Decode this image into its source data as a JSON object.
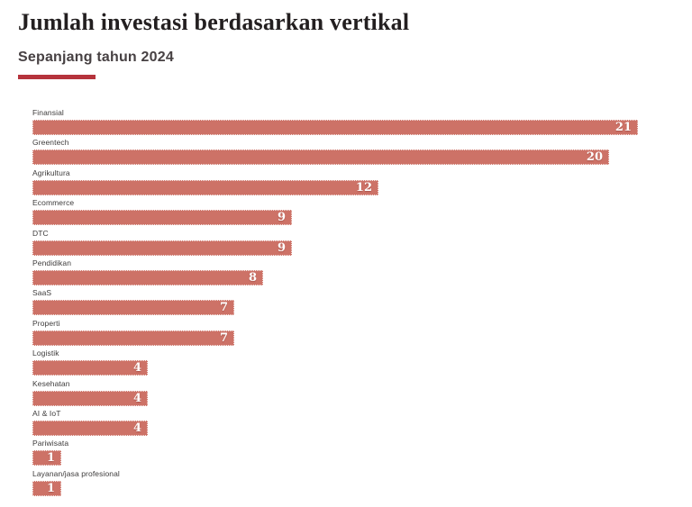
{
  "page": {
    "title": "Jumlah investasi berdasarkan vertikal",
    "subtitle": "Sepanjang tahun 2024"
  },
  "colors": {
    "background": "#ffffff",
    "bar": "#cd7267",
    "bar_border": "rgba(255,255,255,0.85)",
    "accent_underline": "#b5333c",
    "title_text": "#231f20",
    "subtitle_text": "#474143",
    "label_text": "#3d3b3b",
    "value_text": "#ffffff"
  },
  "chart_data": {
    "type": "bar",
    "orientation": "horizontal",
    "title": "Jumlah investasi berdasarkan vertikal",
    "subtitle": "Sepanjang tahun 2024",
    "categories": [
      "Finansial",
      "Greentech",
      "Agrikultura",
      "Ecommerce",
      "DTC",
      "Pendidikan",
      "SaaS",
      "Properti",
      "Logistik",
      "Kesehatan",
      "AI & IoT",
      "Pariwisata",
      "Layanan/jasa profesional"
    ],
    "values": [
      21,
      20,
      12,
      9,
      9,
      8,
      7,
      7,
      4,
      4,
      4,
      1,
      1
    ],
    "xlim": [
      0,
      21
    ],
    "value_labels_shown": true,
    "grid": false,
    "legend": false,
    "axis_lines": false
  }
}
